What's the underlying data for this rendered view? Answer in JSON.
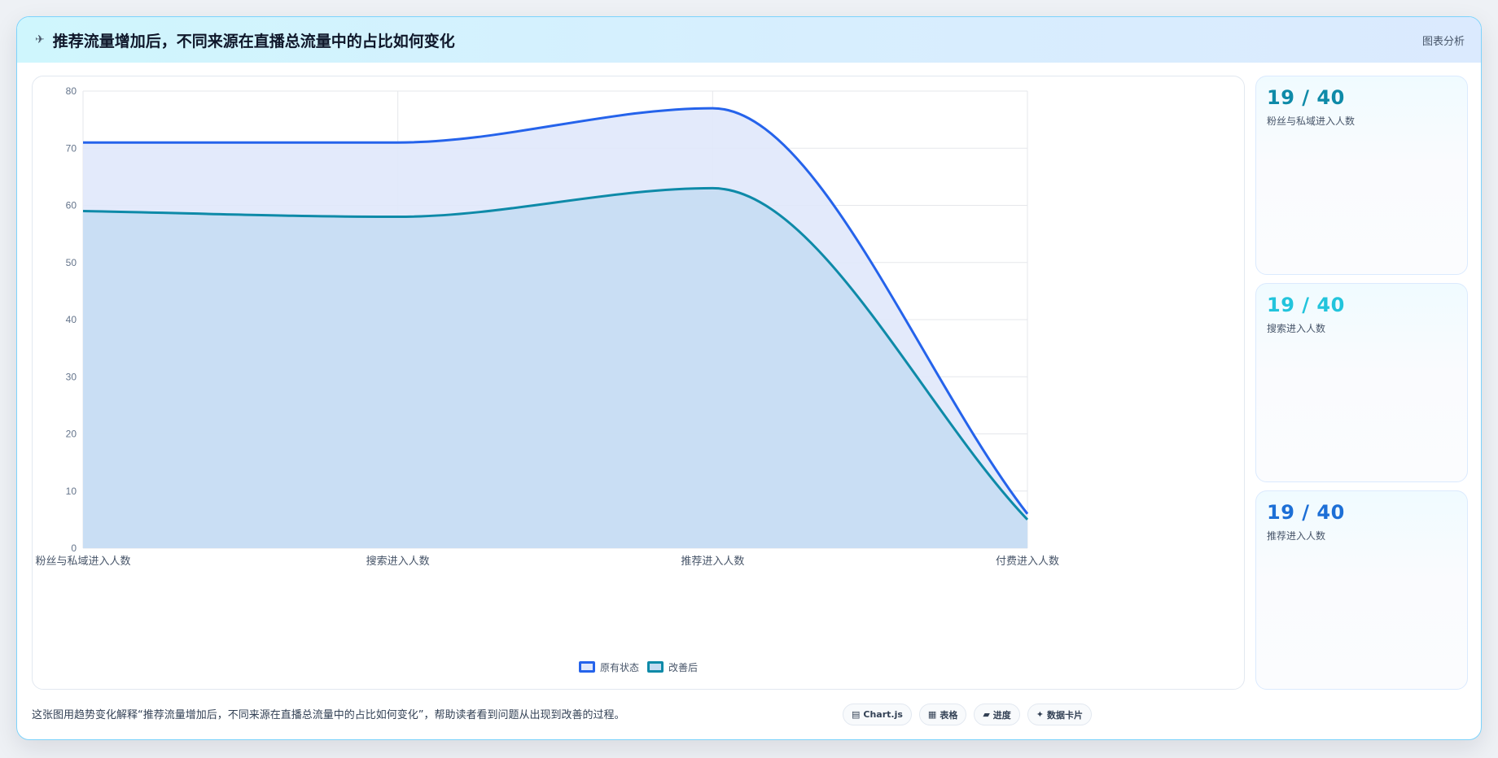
{
  "header": {
    "icon": "✈",
    "title": "推荐流量增加后，不同来源在直播总流量中的占比如何变化",
    "action_label": "图表分析"
  },
  "chart_data": {
    "type": "area",
    "categories": [
      "粉丝与私域进入人数",
      "搜索进入人数",
      "推荐进入人数",
      "付费进入人数"
    ],
    "series": [
      {
        "name": "原有状态",
        "values": [
          71,
          71,
          77,
          6
        ],
        "color": "#2563eb",
        "fill": "#e0e8fb"
      },
      {
        "name": "改善后",
        "values": [
          59,
          58,
          63,
          5
        ],
        "color": "#0e8aa8",
        "fill": "#c4dcf2"
      }
    ],
    "ylim": [
      0,
      80
    ],
    "yticks": [
      0,
      10,
      20,
      30,
      40,
      50,
      60,
      70,
      80
    ],
    "grid": true,
    "legend_position": "bottom-center",
    "title": "",
    "xlabel": "",
    "ylabel": ""
  },
  "stats": [
    {
      "value": "19 / 40",
      "label": "粉丝与私域进入人数",
      "color": "#0e8aa8"
    },
    {
      "value": "19 / 40",
      "label": "搜索进入人数",
      "color": "#22c4dc"
    },
    {
      "value": "19 / 40",
      "label": "推荐进入人数",
      "color": "#1d6fd6"
    }
  ],
  "footer": {
    "description": "这张图用趋势变化解释“推荐流量增加后，不同来源在直播总流量中的占比如何变化”，帮助读者看到问题从出现到改善的过程。",
    "chips": [
      {
        "icon": "▤",
        "label": "Chart.js"
      },
      {
        "icon": "▦",
        "label": "表格"
      },
      {
        "icon": "▰",
        "label": "进度"
      },
      {
        "icon": "✦",
        "label": "数据卡片"
      }
    ]
  }
}
